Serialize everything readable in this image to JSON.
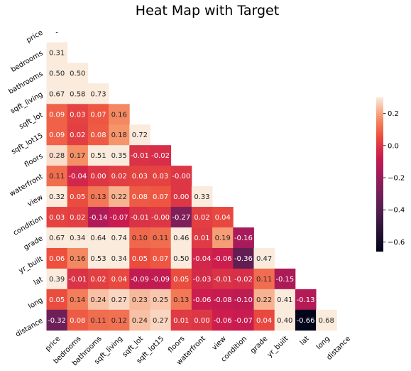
{
  "chart_data": {
    "type": "heatmap",
    "title": "Heat Map with Target",
    "variables": [
      "price",
      "bedrooms",
      "bathrooms",
      "sqft_living",
      "sqft_lot",
      "sqft_lot15",
      "floors",
      "waterfront",
      "view",
      "condition",
      "grade",
      "yr_built",
      "lat",
      "long",
      "distance"
    ],
    "mask": "upper-triangle",
    "diagonal_label": "-",
    "matrix": [
      [],
      [
        0.31
      ],
      [
        0.5,
        0.5
      ],
      [
        0.67,
        0.58,
        0.73
      ],
      [
        0.09,
        0.03,
        0.07,
        0.16
      ],
      [
        0.09,
        0.02,
        0.08,
        0.18,
        0.72
      ],
      [
        0.28,
        0.17,
        0.51,
        0.35,
        -0.01,
        -0.02
      ],
      [
        0.11,
        -0.04,
        0.0,
        0.02,
        0.03,
        0.03,
        -0.0
      ],
      [
        0.32,
        0.05,
        0.13,
        0.22,
        0.08,
        0.07,
        0.0,
        0.33
      ],
      [
        0.03,
        0.02,
        -0.14,
        -0.07,
        -0.01,
        -0.0,
        -0.27,
        0.02,
        0.04
      ],
      [
        0.67,
        0.34,
        0.64,
        0.74,
        0.1,
        0.11,
        0.46,
        0.01,
        0.19,
        -0.16
      ],
      [
        0.06,
        0.16,
        0.53,
        0.34,
        0.05,
        0.07,
        0.5,
        -0.04,
        -0.06,
        -0.36,
        0.47
      ],
      [
        0.39,
        -0.01,
        0.02,
        0.04,
        -0.09,
        -0.09,
        0.05,
        -0.03,
        -0.01,
        -0.02,
        0.11,
        -0.15
      ],
      [
        0.05,
        0.14,
        0.24,
        0.27,
        0.23,
        0.25,
        0.13,
        -0.06,
        -0.08,
        -0.1,
        0.22,
        0.41,
        -0.13
      ],
      [
        -0.32,
        0.08,
        0.11,
        0.12,
        0.24,
        0.27,
        0.01,
        0.0,
        -0.06,
        -0.07,
        0.04,
        0.4,
        -0.66,
        0.68
      ]
    ],
    "value_format": "2-decimal",
    "vmin": -0.66,
    "vmax": 0.3,
    "colormap": "rocket",
    "colorbar": {
      "ticks": [
        -0.6,
        -0.4,
        -0.2,
        0.0,
        0.2
      ],
      "tick_labels": [
        "−0.6",
        "−0.4",
        "−0.2",
        "0.0",
        "0.2"
      ]
    },
    "xlabel": "",
    "ylabel": "",
    "grid": false
  }
}
